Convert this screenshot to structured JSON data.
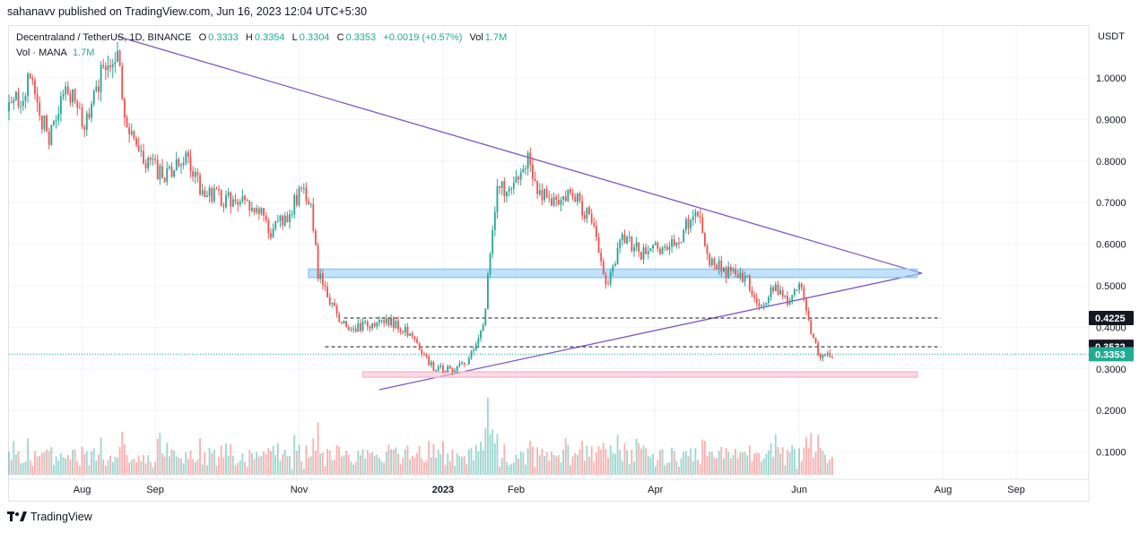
{
  "header": {
    "published": "sahanavv published on TradingView.com, Jun 16, 2023 12:04 UTC+5:30"
  },
  "legend": {
    "symbol": "Decentraland / TetherUS, 1D, BINANCE",
    "o_label": "O",
    "o_value": "0.3333",
    "h_label": "H",
    "h_value": "0.3354",
    "l_label": "L",
    "l_value": "0.3304",
    "c_label": "C",
    "c_value": "0.3353",
    "change": "+0.0019 (+0.57%)",
    "vol_label": "Vol",
    "vol_value": "1.7M",
    "vol_series": "Vol · MANA",
    "vol_series_value": "1.7M"
  },
  "footer": {
    "brand": "TradingView"
  },
  "chart_data": {
    "type": "candlestick",
    "currency": "USDT",
    "y_ticks": [
      "1.0000",
      "0.9000",
      "0.8000",
      "0.7000",
      "0.6000",
      "0.5000",
      "0.4000",
      "0.3000",
      "0.2000",
      "0.1000"
    ],
    "y_tick_values": [
      1.0,
      0.9,
      0.8,
      0.7,
      0.6,
      0.5,
      0.4,
      0.3,
      0.2,
      0.1
    ],
    "x_ticks": [
      "Aug",
      "Sep",
      "Nov",
      "2023",
      "Feb",
      "Apr",
      "Jun",
      "Aug",
      "Sep"
    ],
    "x_tick_dates": [
      "2022-08-01",
      "2022-09-01",
      "2022-11-01",
      "2023-01-01",
      "2023-02-01",
      "2023-04-01",
      "2023-06-01",
      "2023-08-01",
      "2023-09-01"
    ],
    "x_range": [
      "2022-07-01",
      "2023-10-01"
    ],
    "price_tags": [
      {
        "label": "0.4225",
        "value": 0.4225,
        "color": "#131722"
      },
      {
        "label": "0.3532",
        "value": 0.3532,
        "color": "#131722"
      },
      {
        "label": "0.3353",
        "value": 0.3353,
        "color": "#22ab94"
      }
    ],
    "price_path": [
      [
        "2022-07-01",
        0.92
      ],
      [
        "2022-07-10",
        0.99
      ],
      [
        "2022-07-18",
        0.85
      ],
      [
        "2022-07-26",
        0.98
      ],
      [
        "2022-08-02",
        0.88
      ],
      [
        "2022-08-10",
        1.02
      ],
      [
        "2022-08-16",
        1.08
      ],
      [
        "2022-08-20",
        0.87
      ],
      [
        "2022-08-27",
        0.8
      ],
      [
        "2022-09-06",
        0.76
      ],
      [
        "2022-09-14",
        0.81
      ],
      [
        "2022-09-20",
        0.74
      ],
      [
        "2022-09-28",
        0.71
      ],
      [
        "2022-10-06",
        0.7
      ],
      [
        "2022-10-14",
        0.69
      ],
      [
        "2022-10-20",
        0.63
      ],
      [
        "2022-10-26",
        0.66
      ],
      [
        "2022-11-02",
        0.73
      ],
      [
        "2022-11-06",
        0.7
      ],
      [
        "2022-11-09",
        0.53
      ],
      [
        "2022-11-14",
        0.46
      ],
      [
        "2022-11-22",
        0.39
      ],
      [
        "2022-12-02",
        0.41
      ],
      [
        "2022-12-12",
        0.41
      ],
      [
        "2022-12-20",
        0.37
      ],
      [
        "2022-12-28",
        0.3
      ],
      [
        "2023-01-05",
        0.3
      ],
      [
        "2023-01-12",
        0.32
      ],
      [
        "2023-01-18",
        0.4
      ],
      [
        "2023-01-24",
        0.74
      ],
      [
        "2023-01-30",
        0.72
      ],
      [
        "2023-02-06",
        0.8
      ],
      [
        "2023-02-10",
        0.72
      ],
      [
        "2023-02-18",
        0.7
      ],
      [
        "2023-02-26",
        0.72
      ],
      [
        "2023-03-06",
        0.64
      ],
      [
        "2023-03-11",
        0.5
      ],
      [
        "2023-03-18",
        0.62
      ],
      [
        "2023-03-26",
        0.58
      ],
      [
        "2023-04-04",
        0.59
      ],
      [
        "2023-04-12",
        0.62
      ],
      [
        "2023-04-18",
        0.69
      ],
      [
        "2023-04-24",
        0.56
      ],
      [
        "2023-05-02",
        0.53
      ],
      [
        "2023-05-10",
        0.51
      ],
      [
        "2023-05-16",
        0.45
      ],
      [
        "2023-05-22",
        0.5
      ],
      [
        "2023-05-28",
        0.46
      ],
      [
        "2023-06-02",
        0.51
      ],
      [
        "2023-06-06",
        0.38
      ],
      [
        "2023-06-10",
        0.33
      ],
      [
        "2023-06-15",
        0.3353
      ]
    ],
    "volume_scale_max": 0.3,
    "annotations": [
      {
        "kind": "trendline",
        "from": [
          "2022-08-16",
          1.1
        ],
        "to": [
          "2023-07-23",
          0.53
        ],
        "color": "#7e57c2"
      },
      {
        "kind": "trendline",
        "from": [
          "2022-12-05",
          0.25
        ],
        "to": [
          "2023-07-23",
          0.53
        ],
        "color": "#7e57c2"
      },
      {
        "kind": "zone",
        "from": "2022-11-05",
        "to": "2023-07-21",
        "y_low": 0.52,
        "y_high": 0.54,
        "color": "#90caf9"
      },
      {
        "kind": "zone",
        "from": "2022-11-28",
        "to": "2023-07-21",
        "y_low": 0.28,
        "y_high": 0.293,
        "color": "#f8bbd0"
      },
      {
        "kind": "hline",
        "from": "2022-11-20",
        "to": "2023-07-31",
        "value": 0.4225
      },
      {
        "kind": "hline",
        "from": "2022-11-12",
        "to": "2023-07-31",
        "value": 0.3532
      }
    ]
  }
}
